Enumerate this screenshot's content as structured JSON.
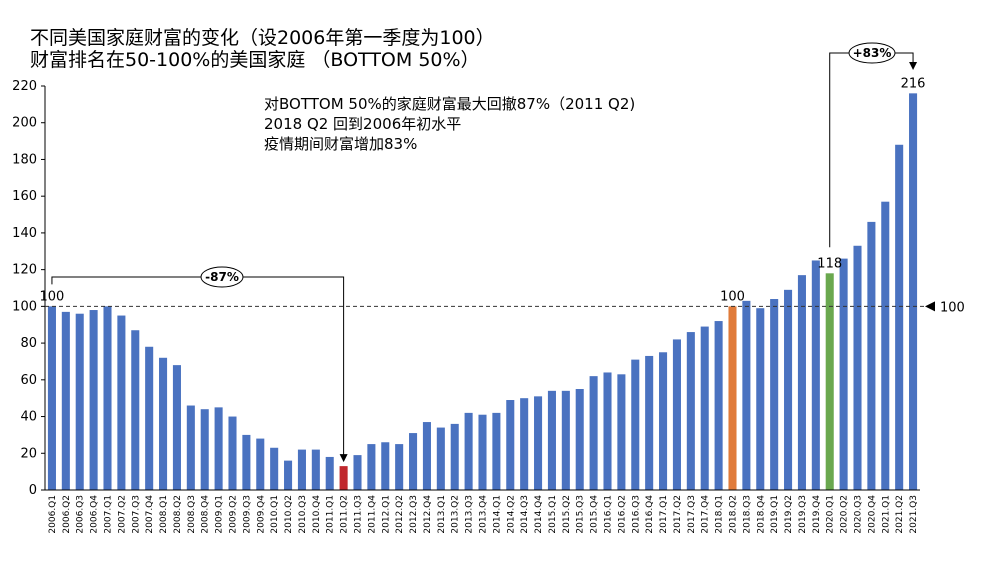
{
  "title_line1": "不同美国家庭财富的变化（设2006年第一季度为100）",
  "title_line2": "财富排名在50-100%的美国家庭 （BOTTOM 50%）",
  "annotations": [
    "对BOTTOM 50%的家庭财富最大回撤87%（2011 Q2)",
    "2018 Q2 回到2006年初水平",
    "疫情期间财富增加83%"
  ],
  "callouts": {
    "drawdown": "-87%",
    "gain": "+83%",
    "ref_label": "100",
    "label_start": "100",
    "label_2018q2": "100",
    "label_2020q1": "118",
    "label_last": "216"
  },
  "colors": {
    "bar": "#4a72c0",
    "bar_2011q2": "#c0282d",
    "bar_2018q2": "#e07b3a",
    "bar_2020q1": "#6aa84f",
    "text": "#000000"
  },
  "chart_data": {
    "type": "bar",
    "ylim": [
      0,
      220
    ],
    "yticks": [
      0,
      20,
      40,
      60,
      80,
      100,
      120,
      140,
      160,
      180,
      200,
      220
    ],
    "reference_line": 100,
    "grid": false,
    "categories": [
      "2006.Q1",
      "2006.Q2",
      "2006.Q3",
      "2006.Q4",
      "2007.Q1",
      "2007.Q2",
      "2007.Q3",
      "2007.Q4",
      "2008.Q1",
      "2008.Q2",
      "2008.Q3",
      "2008.Q4",
      "2009.Q1",
      "2009.Q2",
      "2009.Q3",
      "2009.Q4",
      "2010.Q1",
      "2010.Q2",
      "2010.Q3",
      "2010.Q4",
      "2011.Q1",
      "2011.Q2",
      "2011.Q3",
      "2011.Q4",
      "2012.Q1",
      "2012.Q2",
      "2012.Q3",
      "2012.Q4",
      "2013.Q1",
      "2013.Q2",
      "2013.Q3",
      "2013.Q4",
      "2014.Q1",
      "2014.Q2",
      "2014.Q3",
      "2014.Q4",
      "2015.Q1",
      "2015.Q2",
      "2015.Q3",
      "2015.Q4",
      "2016.Q1",
      "2016.Q2",
      "2016.Q3",
      "2016.Q4",
      "2017.Q1",
      "2017.Q2",
      "2017.Q3",
      "2017.Q4",
      "2018.Q1",
      "2018.Q2",
      "2018.Q3",
      "2018.Q4",
      "2019.Q1",
      "2019.Q2",
      "2019.Q3",
      "2019.Q4",
      "2020.Q1",
      "2020.Q2",
      "2020.Q3",
      "2020.Q4",
      "2021.Q1",
      "2021.Q2",
      "2021.Q3"
    ],
    "values": [
      100,
      97,
      96,
      98,
      100,
      95,
      87,
      78,
      72,
      68,
      46,
      44,
      45,
      40,
      30,
      28,
      23,
      16,
      22,
      22,
      18,
      13,
      19,
      25,
      26,
      25,
      31,
      37,
      34,
      36,
      42,
      41,
      42,
      49,
      50,
      51,
      54,
      54,
      55,
      62,
      64,
      63,
      71,
      73,
      75,
      82,
      86,
      89,
      92,
      100,
      103,
      99,
      104,
      109,
      117,
      125,
      118,
      126,
      133,
      146,
      157,
      188,
      216
    ],
    "highlight": {
      "2011.Q2": "bar_2011q2",
      "2018.Q2": "bar_2018q2",
      "2020.Q1": "bar_2020q1"
    }
  }
}
